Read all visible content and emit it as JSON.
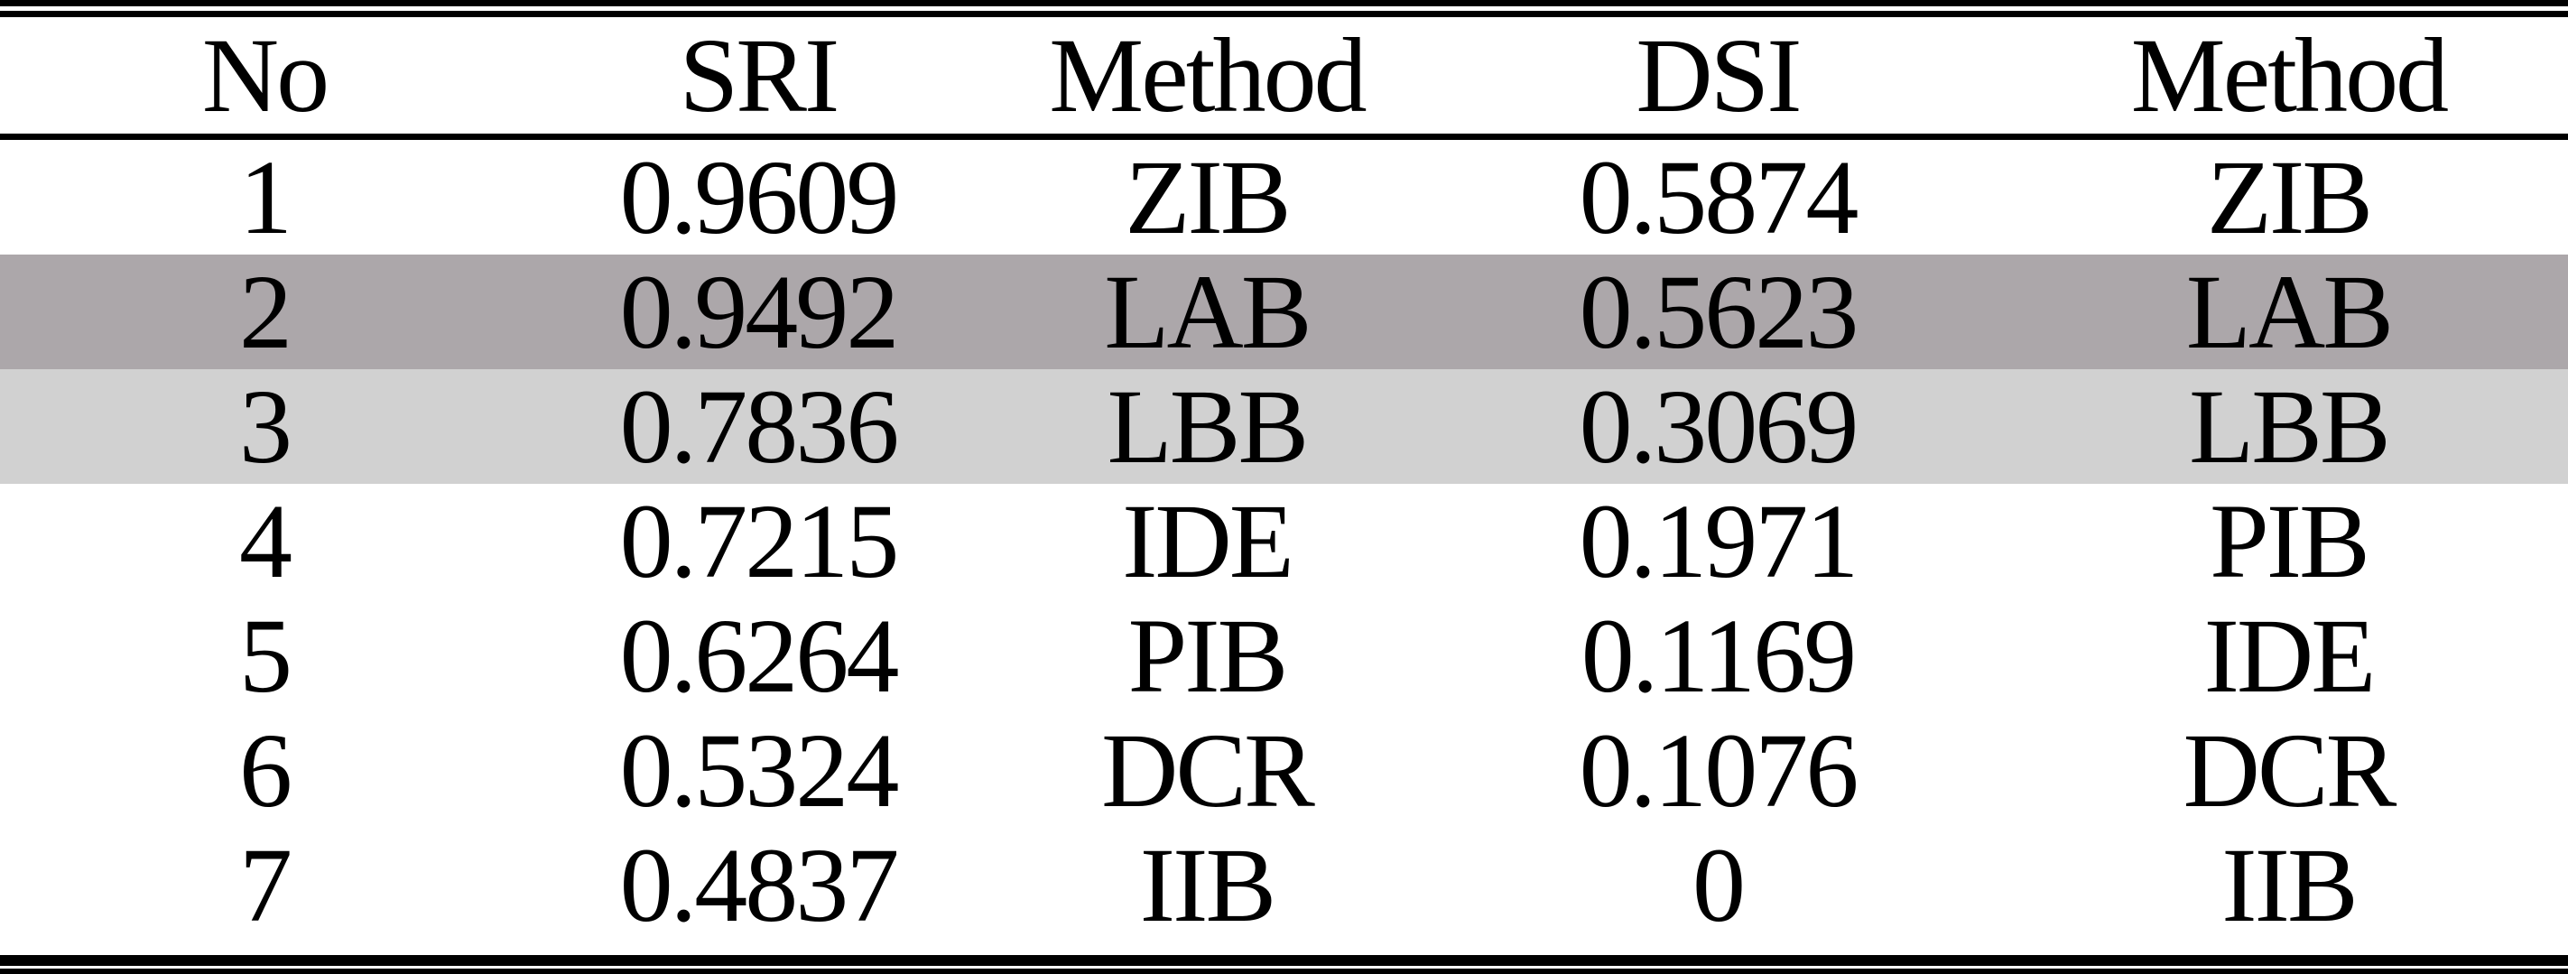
{
  "table": {
    "headers": [
      "No",
      "SRI",
      "Method",
      "DSI",
      "Method"
    ],
    "rows": [
      [
        "1",
        "0.9609",
        "ZIB",
        "0.5874",
        "ZIB"
      ],
      [
        "2",
        "0.9492",
        "LAB",
        "0.5623",
        "LAB"
      ],
      [
        "3",
        "0.7836",
        "LBB",
        "0.3069",
        "LBB"
      ],
      [
        "4",
        "0.7215",
        "IDE",
        "0.1971",
        "PIB"
      ],
      [
        "5",
        "0.6264",
        "PIB",
        "0.1169",
        "IDE"
      ],
      [
        "6",
        "0.5324",
        "DCR",
        "0.1076",
        "DCR"
      ],
      [
        "7",
        "0.4837",
        "IIB",
        "0",
        "IIB"
      ]
    ],
    "row_highlights": [
      "none",
      "dark",
      "light",
      "none",
      "none",
      "none",
      "none"
    ],
    "colors": {
      "highlight_dark": "#aca7aa",
      "highlight_light": "#d1d1d1",
      "rule": "#000000",
      "text": "#000000",
      "background": "#ffffff"
    }
  },
  "chart_data": {
    "type": "table",
    "columns": [
      "No",
      "SRI",
      "Method",
      "DSI",
      "Method"
    ],
    "rows": [
      [
        "1",
        "0.9609",
        "ZIB",
        "0.5874",
        "ZIB"
      ],
      [
        "2",
        "0.9492",
        "LAB",
        "0.5623",
        "LAB"
      ],
      [
        "3",
        "0.7836",
        "LBB",
        "0.3069",
        "LBB"
      ],
      [
        "4",
        "0.7215",
        "IDE",
        "0.1971",
        "PIB"
      ],
      [
        "5",
        "0.6264",
        "PIB",
        "0.1169",
        "IDE"
      ],
      [
        "6",
        "0.5324",
        "DCR",
        "0.1076",
        "DCR"
      ],
      [
        "7",
        "0.4837",
        "IIB",
        "0",
        "IIB"
      ]
    ]
  }
}
